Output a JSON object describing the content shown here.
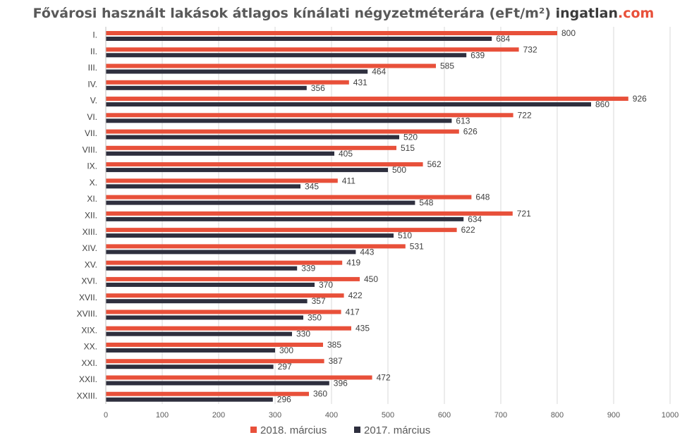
{
  "chart_data": {
    "type": "bar",
    "orientation": "horizontal",
    "title": "Fővárosi használt lakások átlagos kínálati négyzetméterára (eFt/m²)",
    "brand": {
      "name": "ingatlan",
      "tld": ".com"
    },
    "categories": [
      "I.",
      "II.",
      "III.",
      "IV.",
      "V.",
      "VI.",
      "VII.",
      "VIII.",
      "IX.",
      "X.",
      "XI.",
      "XII.",
      "XIII.",
      "XIV.",
      "XV.",
      "XVI.",
      "XVII.",
      "XVIII.",
      "XIX.",
      "XX.",
      "XXI.",
      "XXII.",
      "XXIII."
    ],
    "series": [
      {
        "name": "2018. március",
        "color": "#e8503a",
        "values": [
          800,
          732,
          585,
          431,
          926,
          722,
          626,
          515,
          562,
          411,
          648,
          721,
          622,
          531,
          419,
          450,
          422,
          417,
          435,
          385,
          387,
          472,
          360
        ]
      },
      {
        "name": "2017. március",
        "color": "#2e2f3e",
        "values": [
          684,
          639,
          464,
          356,
          860,
          613,
          520,
          405,
          500,
          345,
          548,
          634,
          510,
          443,
          339,
          370,
          357,
          350,
          330,
          300,
          297,
          396,
          296
        ]
      }
    ],
    "xlim": [
      0,
      1000
    ],
    "xticks": [
      0,
      100,
      200,
      300,
      400,
      500,
      600,
      700,
      800,
      900,
      1000
    ],
    "grid": true,
    "legend": "bottom"
  }
}
